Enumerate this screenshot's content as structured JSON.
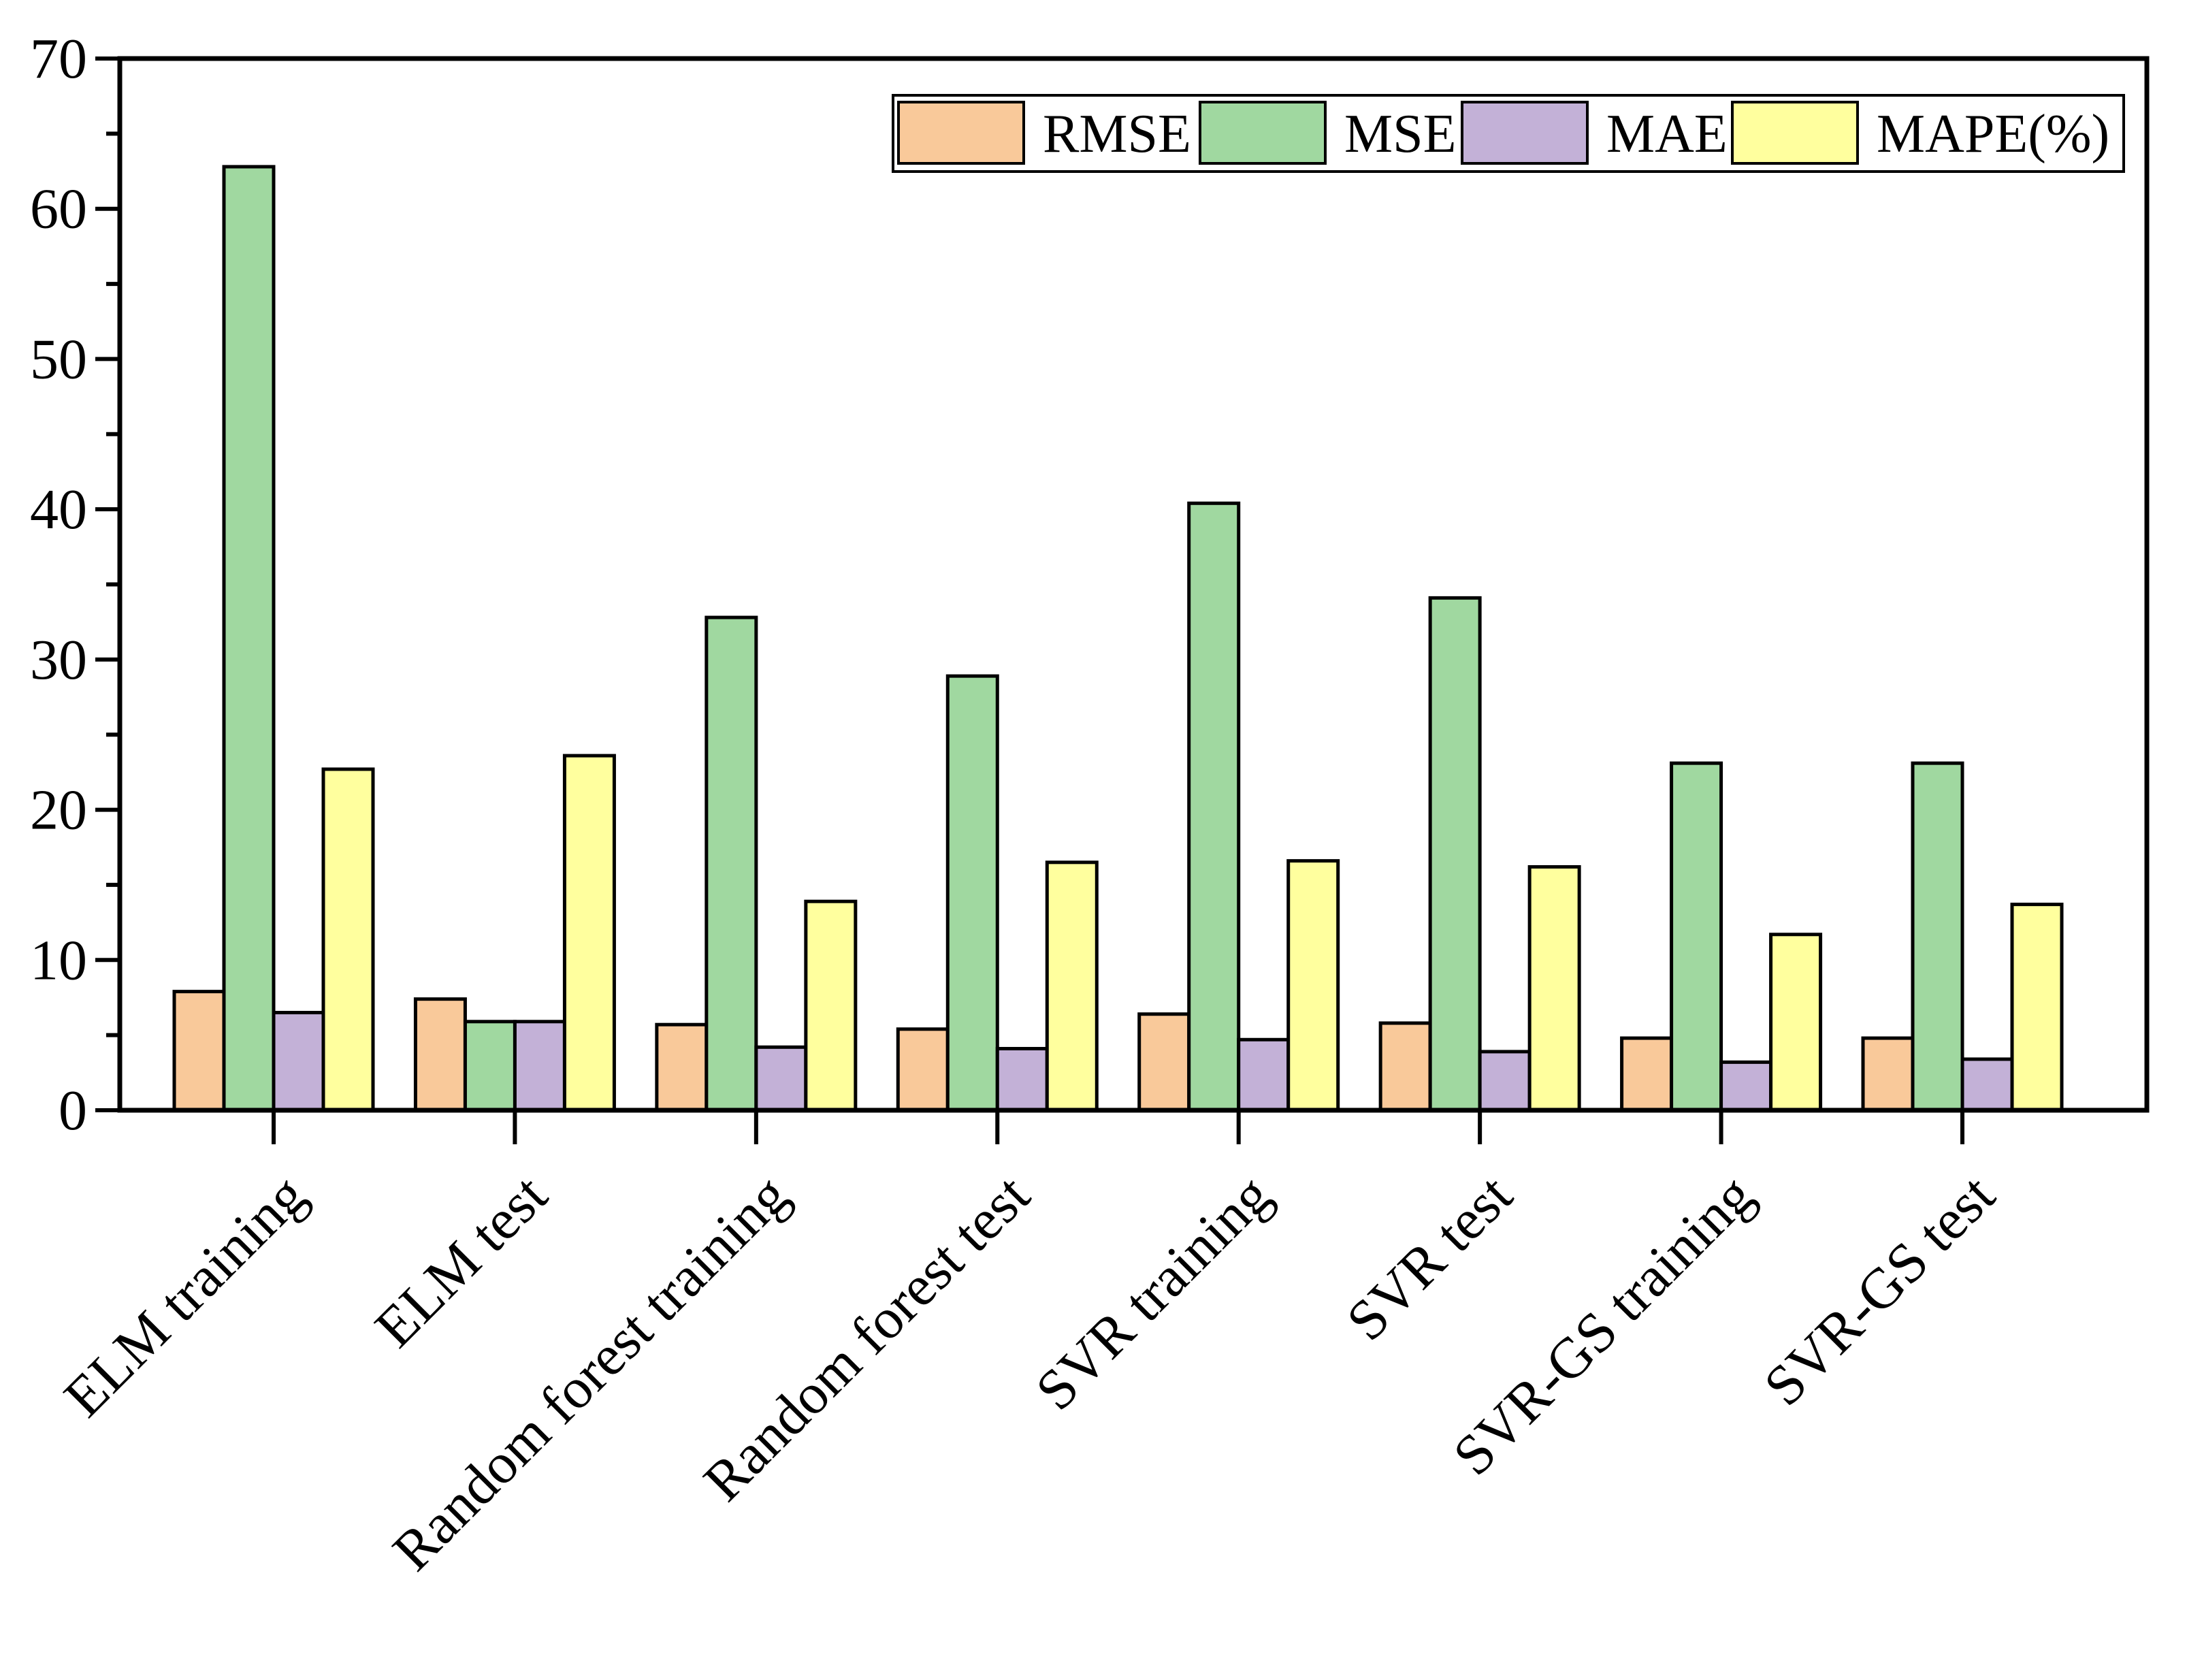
{
  "chart_data": {
    "type": "bar",
    "title": "",
    "xlabel": "",
    "ylabel": "",
    "ylim": [
      0,
      70
    ],
    "yticks": [
      0,
      10,
      20,
      30,
      40,
      50,
      60,
      70
    ],
    "categories": [
      "ELM training",
      "ELM test",
      "Random forest training",
      "Random forest test",
      "SVR training",
      "SVR test",
      "SVR-GS training",
      "SVR-GS test"
    ],
    "series": [
      {
        "name": "RMSE",
        "color": "#F9C99A",
        "values": [
          7.9,
          7.4,
          5.7,
          5.4,
          6.4,
          5.8,
          4.8,
          4.8
        ]
      },
      {
        "name": "MSE",
        "color": "#A0D8A0",
        "values": [
          62.8,
          5.9,
          32.8,
          28.9,
          40.4,
          34.1,
          23.1,
          23.1
        ]
      },
      {
        "name": "MAE",
        "color": "#C3B1D7",
        "values": [
          6.5,
          5.9,
          4.2,
          4.1,
          4.7,
          3.9,
          3.2,
          3.4
        ]
      },
      {
        "name": "MAPE(%)",
        "color": "#FFFF9E",
        "values": [
          22.7,
          23.6,
          13.9,
          16.5,
          16.6,
          16.2,
          11.7,
          13.7
        ]
      }
    ],
    "legend_position": "top-right",
    "grid": false
  }
}
